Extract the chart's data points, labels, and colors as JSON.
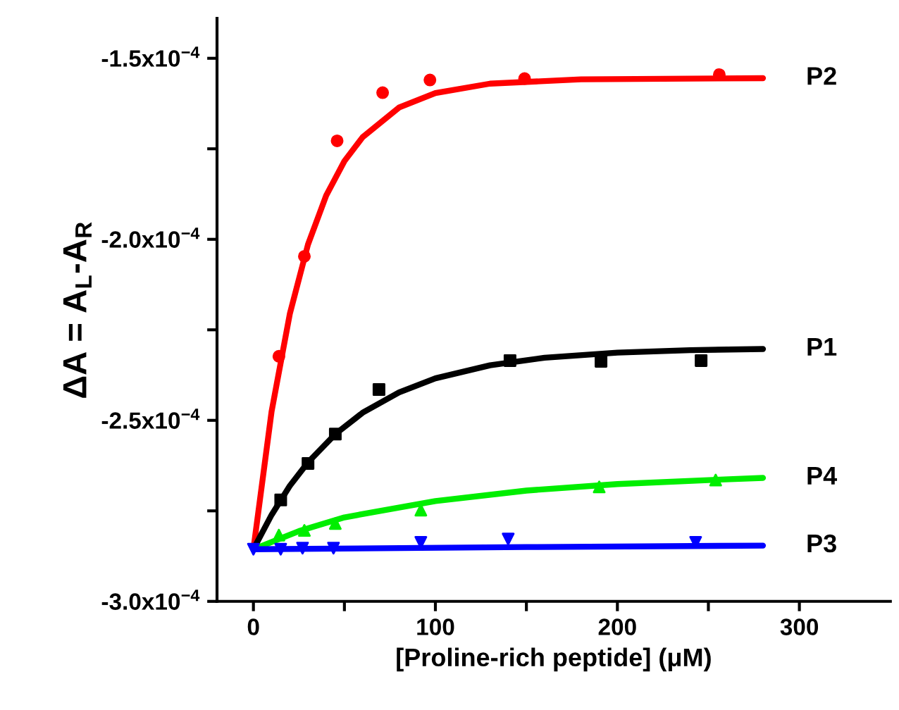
{
  "chart_data": {
    "type": "line",
    "xlabel": "[Proline-rich peptide] (μM)",
    "ylabel": "ΔA = A$_{L}$-A$_{R}$",
    "xlim": [
      -20,
      350
    ],
    "xticks": [
      0,
      {
        "value": 50,
        "label": null
      },
      100,
      {
        "value": 150,
        "label": null
      },
      200,
      {
        "value": 250,
        "label": null
      },
      300
    ],
    "ylim": [
      -0.0003,
      -0.000139
    ],
    "yticks": [
      {
        "value": -0.0003,
        "label": "-3.0x10$^{−4}$"
      },
      {
        "value": -0.000275,
        "label": null
      },
      {
        "value": -0.00025,
        "label": "-2.5x10$^{−4}$"
      },
      {
        "value": -0.000225,
        "label": null
      },
      {
        "value": -0.0002,
        "label": "-2.0x10$^{−4}$"
      },
      {
        "value": -0.000175,
        "label": null
      },
      {
        "value": -0.00015,
        "label": "-1.5x10$^{−4}$"
      }
    ],
    "grid": false,
    "legend": false,
    "series": [
      {
        "name": "P2",
        "color": "#ff0000",
        "marker": "none",
        "x": [
          0,
          10,
          20,
          30,
          40,
          50,
          60,
          80,
          100,
          130,
          180,
          280
        ],
        "values": [
          -0.0002856,
          -0.0002475,
          -0.0002206,
          -0.0002014,
          -0.0001879,
          -0.0001784,
          -0.0001718,
          -0.0001636,
          -0.0001596,
          -0.000157,
          -0.0001558,
          -0.0001555
        ]
      },
      {
        "type": "scatter",
        "color": "#ff0000",
        "marker": "circle",
        "x": [
          14,
          28,
          46,
          71,
          97,
          149,
          256
        ],
        "values": [
          -0.0002323,
          -0.0002047,
          -0.0001728,
          -0.0001595,
          -0.000156,
          -0.0001556,
          -0.0001545
        ]
      },
      {
        "name": "P1",
        "color": "#000000",
        "marker": "none",
        "x": [
          0,
          10,
          20,
          30,
          45,
          60,
          80,
          100,
          130,
          160,
          200,
          240,
          280
        ],
        "values": [
          -0.0002856,
          -0.0002761,
          -0.0002681,
          -0.0002616,
          -0.0002538,
          -0.0002479,
          -0.0002423,
          -0.0002384,
          -0.0002348,
          -0.0002327,
          -0.0002313,
          -0.0002306,
          -0.0002303
        ]
      },
      {
        "type": "scatter",
        "color": "#000000",
        "marker": "square",
        "x": [
          15,
          30,
          45,
          69,
          141,
          191,
          246
        ],
        "values": [
          -0.000272,
          -0.0002619,
          -0.0002538,
          -0.0002415,
          -0.0002335,
          -0.0002337,
          -0.0002335
        ]
      },
      {
        "name": "P4",
        "color": "#00ee00",
        "marker": "none",
        "x": [
          0,
          25,
          50,
          100,
          150,
          200,
          250,
          280
        ],
        "values": [
          -0.0002856,
          -0.0002806,
          -0.0002768,
          -0.0002723,
          -0.0002694,
          -0.0002676,
          -0.0002665,
          -0.0002659
        ]
      },
      {
        "type": "scatter",
        "color": "#00ee00",
        "marker": "triangle",
        "x": [
          14,
          28,
          45,
          92,
          190,
          254
        ],
        "values": [
          -0.0002817,
          -0.0002804,
          -0.0002785,
          -0.0002748,
          -0.0002684,
          -0.0002665
        ]
      },
      {
        "name": "P3",
        "color": "#0000ff",
        "marker": "none",
        "x": [
          0,
          150,
          280
        ],
        "values": [
          -0.0002856,
          -0.000285,
          -0.0002846
        ]
      },
      {
        "type": "scatter",
        "color": "#0000ff",
        "marker": "triangle-down",
        "x": [
          0,
          15,
          27,
          44,
          92,
          140,
          243
        ],
        "values": [
          -0.0002856,
          -0.0002856,
          -0.0002853,
          -0.0002853,
          -0.0002837,
          -0.0002828,
          -0.0002837
        ]
      }
    ]
  }
}
